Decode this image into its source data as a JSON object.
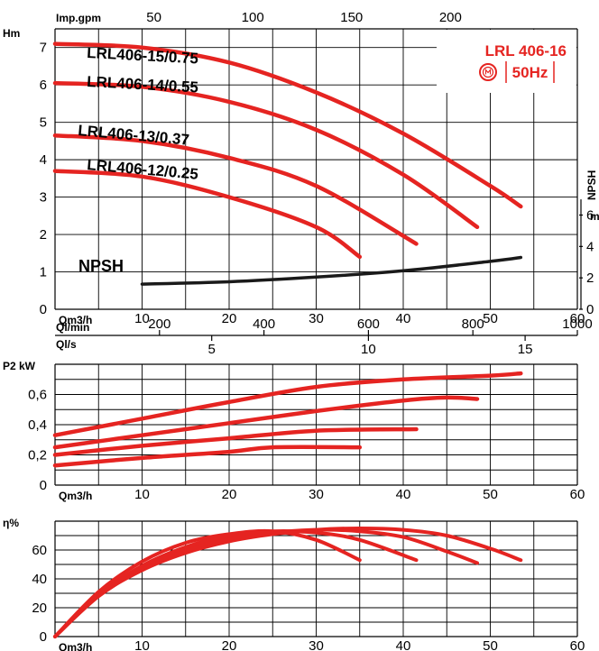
{
  "colors": {
    "curve": "#e52421",
    "npsh": "#1a1a1a",
    "grid": "#000000"
  },
  "header": {
    "title": "LRL 406-16",
    "freq": "50Hz",
    "logo_icon": "motor-circle-icon"
  },
  "chart_data": [
    {
      "id": "head",
      "type": "line",
      "ylabel": "Hm",
      "xlabel": "Qm3/h",
      "xlim": [
        0,
        60
      ],
      "ylim": [
        0,
        7.5
      ],
      "xticks": [
        10,
        20,
        30,
        40,
        50,
        60
      ],
      "yticks": [
        0,
        1,
        2,
        3,
        4,
        5,
        6,
        7
      ],
      "secondary_x_axes": [
        {
          "label": "Imp.gpm",
          "ticks": [
            "50",
            "100",
            "150",
            "200"
          ],
          "values": [
            50,
            100,
            150,
            200
          ],
          "factor": 4.4029
        },
        {
          "label": "Ql/min",
          "ticks": [
            "200",
            "400",
            "600",
            "800",
            "1000"
          ],
          "values": [
            200,
            400,
            600,
            800,
            1000
          ],
          "factor": 16.6667
        },
        {
          "label": "Ql/s",
          "ticks": [
            "5",
            "10",
            "15"
          ],
          "values": [
            5,
            10,
            15
          ],
          "factor": 0.27778
        }
      ],
      "npsh_axis": {
        "label": "NPSH",
        "unit": "m",
        "ticks": [
          "0",
          "2",
          "4",
          "6"
        ],
        "values": [
          0,
          2,
          4,
          6
        ],
        "ylim": [
          0,
          7.5
        ]
      },
      "series": [
        {
          "name": "LRL406-15/0.75",
          "x": [
            0,
            10,
            20,
            30,
            40,
            50,
            53.5
          ],
          "y": [
            7.1,
            7.0,
            6.6,
            5.8,
            4.7,
            3.3,
            2.75
          ]
        },
        {
          "name": "LRL406-14/0.55",
          "x": [
            0,
            10,
            20,
            30,
            40,
            48.5
          ],
          "y": [
            6.05,
            5.95,
            5.55,
            4.8,
            3.6,
            2.2
          ]
        },
        {
          "name": "LRL406-13/0.37",
          "x": [
            0,
            10,
            20,
            30,
            41.5
          ],
          "y": [
            4.65,
            4.5,
            4.05,
            3.3,
            1.75
          ]
        },
        {
          "name": "LRL406-12/0.25",
          "x": [
            0,
            10,
            20,
            30,
            35
          ],
          "y": [
            3.7,
            3.55,
            3.0,
            2.2,
            1.4
          ]
        }
      ],
      "npsh_curve": {
        "name": "NPSH",
        "x": [
          10,
          20,
          30,
          40,
          50,
          53.5
        ],
        "y": [
          1.6,
          1.75,
          2.05,
          2.45,
          3.05,
          3.3
        ]
      }
    },
    {
      "id": "power",
      "type": "line",
      "ylabel": "P2 kW",
      "xlabel": "Qm3/h",
      "xlim": [
        0,
        60
      ],
      "ylim": [
        0,
        0.8
      ],
      "xticks": [
        10,
        20,
        30,
        40,
        50,
        60
      ],
      "yticks": [
        0,
        0.2,
        0.4,
        0.6
      ],
      "ytick_labels": [
        "0",
        "0,2",
        "0,4",
        "0,6"
      ],
      "series": [
        {
          "x": [
            0,
            10,
            20,
            30,
            40,
            50,
            53.5
          ],
          "y": [
            0.33,
            0.44,
            0.55,
            0.65,
            0.7,
            0.725,
            0.74
          ]
        },
        {
          "x": [
            0,
            10,
            20,
            30,
            40,
            45,
            48.5
          ],
          "y": [
            0.25,
            0.33,
            0.41,
            0.49,
            0.56,
            0.58,
            0.57
          ]
        },
        {
          "x": [
            0,
            10,
            20,
            30,
            41.5
          ],
          "y": [
            0.2,
            0.26,
            0.31,
            0.36,
            0.37
          ]
        },
        {
          "x": [
            0,
            10,
            20,
            25,
            35
          ],
          "y": [
            0.13,
            0.18,
            0.22,
            0.25,
            0.25
          ]
        }
      ]
    },
    {
      "id": "efficiency",
      "type": "line",
      "ylabel": "η%",
      "xlabel": "Qm3/h",
      "xlim": [
        0,
        60
      ],
      "ylim": [
        0,
        80
      ],
      "xticks": [
        10,
        20,
        30,
        40,
        50,
        60
      ],
      "yticks": [
        0,
        20,
        40,
        60
      ],
      "series": [
        {
          "x": [
            0,
            5,
            10,
            15,
            20,
            25,
            30,
            35,
            40,
            45,
            50,
            53.5
          ],
          "y": [
            0,
            28,
            46,
            58,
            66,
            71,
            74,
            75,
            74,
            70,
            61,
            53
          ]
        },
        {
          "x": [
            0,
            5,
            10,
            15,
            20,
            25,
            30,
            35,
            40,
            45,
            48.5
          ],
          "y": [
            0,
            28,
            47,
            60,
            68,
            72,
            74,
            73,
            69,
            59,
            51
          ]
        },
        {
          "x": [
            0,
            5,
            10,
            15,
            20,
            25,
            30,
            35,
            41.5
          ],
          "y": [
            0,
            29,
            49,
            62,
            70,
            73,
            72,
            67,
            53
          ]
        },
        {
          "x": [
            0,
            5,
            10,
            15,
            20,
            25,
            30,
            35
          ],
          "y": [
            0,
            31,
            52,
            65,
            71,
            73,
            67,
            53
          ]
        }
      ]
    }
  ]
}
